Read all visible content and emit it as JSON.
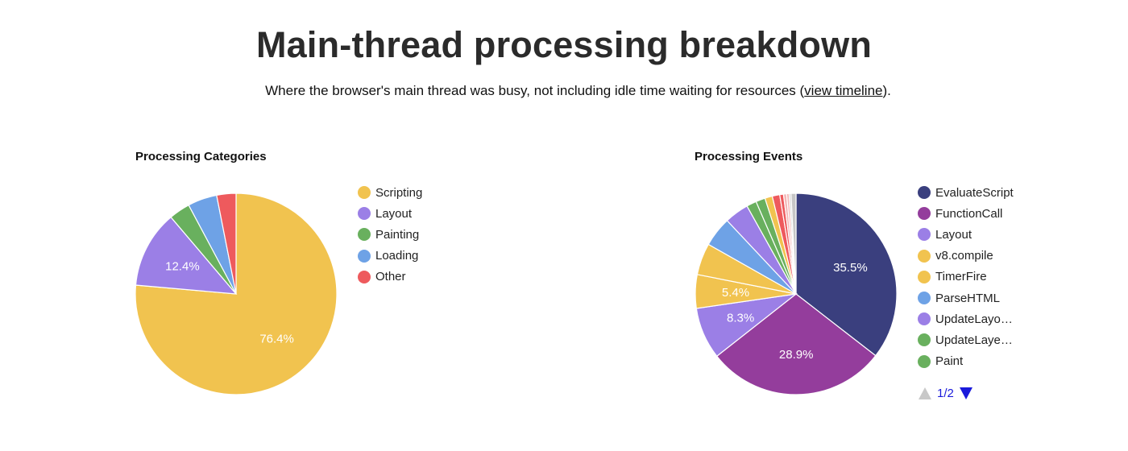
{
  "header": {
    "title": "Main-thread processing breakdown",
    "subtitle_before": "Where the browser's main thread was busy, not including idle time waiting for resources (",
    "subtitle_link": "view timeline",
    "subtitle_after": ")."
  },
  "legend_pager": {
    "label": "1/2",
    "up_icon": "triangle-up-icon",
    "down_icon": "triangle-down-icon",
    "up_color": "#c8c8c8",
    "down_color": "#1a1adb"
  },
  "chart_data": [
    {
      "type": "pie",
      "title": "Processing Categories",
      "legend": "right",
      "slices": [
        {
          "label": "Scripting",
          "value": 76.4,
          "color": "#f1c34f",
          "data_label": "76.4%"
        },
        {
          "label": "Layout",
          "value": 12.4,
          "color": "#9b7fe6",
          "data_label": "12.4%"
        },
        {
          "label": "Painting",
          "value": 3.4,
          "color": "#69b05e",
          "data_label": ""
        },
        {
          "label": "Loading",
          "value": 4.7,
          "color": "#6ea2e6",
          "data_label": ""
        },
        {
          "label": "Other",
          "value": 3.1,
          "color": "#ee5a5d",
          "data_label": ""
        }
      ]
    },
    {
      "type": "pie",
      "title": "Processing Events",
      "legend": "right",
      "slices": [
        {
          "label": "EvaluateScript",
          "value": 35.5,
          "color": "#3a3f7e",
          "data_label": "35.5%"
        },
        {
          "label": "FunctionCall",
          "value": 28.9,
          "color": "#943d9c",
          "data_label": "28.9%"
        },
        {
          "label": "Layout",
          "value": 8.3,
          "color": "#9b7fe6",
          "data_label": "8.3%"
        },
        {
          "label": "v8.compile",
          "value": 5.4,
          "color": "#f1c34f",
          "data_label": "5.4%"
        },
        {
          "label": "TimerFire",
          "value": 5.1,
          "color": "#f1c34f",
          "data_label": ""
        },
        {
          "label": "ParseHTML",
          "value": 4.8,
          "color": "#6ea2e6",
          "data_label": ""
        },
        {
          "label": "UpdateLayo…",
          "value": 3.9,
          "color": "#9b7fe6",
          "data_label": ""
        },
        {
          "label": "UpdateLaye…",
          "value": 1.6,
          "color": "#69b05e",
          "data_label": ""
        },
        {
          "label": "Paint",
          "value": 1.5,
          "color": "#69b05e",
          "data_label": ""
        },
        {
          "value": 1.2,
          "color": "#f1c34f"
        },
        {
          "value": 1.2,
          "color": "#ee5a5d"
        },
        {
          "value": 0.6,
          "color": "#ee5a5d"
        },
        {
          "value": 0.5,
          "color": "#f4b6b6"
        },
        {
          "value": 0.4,
          "color": "#f4b6b6"
        },
        {
          "value": 0.3,
          "color": "#cfcfcf"
        },
        {
          "value": 0.8,
          "color": "#c6c6c6"
        }
      ]
    }
  ]
}
